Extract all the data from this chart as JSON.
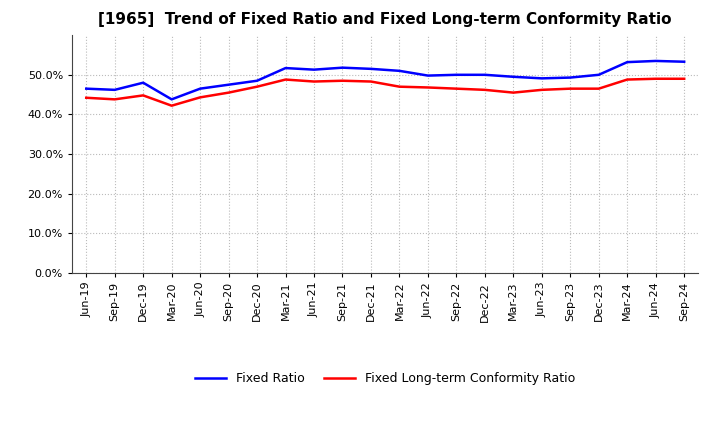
{
  "title": "[1965]  Trend of Fixed Ratio and Fixed Long-term Conformity Ratio",
  "x_labels": [
    "Jun-19",
    "Sep-19",
    "Dec-19",
    "Mar-20",
    "Jun-20",
    "Sep-20",
    "Dec-20",
    "Mar-21",
    "Jun-21",
    "Sep-21",
    "Dec-21",
    "Mar-22",
    "Jun-22",
    "Sep-22",
    "Dec-22",
    "Mar-23",
    "Jun-23",
    "Sep-23",
    "Dec-23",
    "Mar-24",
    "Jun-24",
    "Sep-24"
  ],
  "fixed_ratio": [
    46.5,
    46.2,
    48.0,
    43.8,
    46.5,
    47.5,
    48.5,
    51.7,
    51.3,
    51.8,
    51.5,
    51.0,
    49.8,
    50.0,
    50.0,
    49.5,
    49.1,
    49.3,
    50.0,
    53.2,
    53.5,
    53.3
  ],
  "fixed_lt_ratio": [
    44.2,
    43.8,
    44.8,
    42.2,
    44.3,
    45.5,
    47.0,
    48.8,
    48.3,
    48.5,
    48.3,
    47.0,
    46.8,
    46.5,
    46.2,
    45.5,
    46.2,
    46.5,
    46.5,
    48.8,
    49.0,
    49.0
  ],
  "fixed_ratio_color": "#0000FF",
  "fixed_lt_ratio_color": "#FF0000",
  "ylim": [
    0,
    60
  ],
  "yticks": [
    0.0,
    10.0,
    20.0,
    30.0,
    40.0,
    50.0
  ],
  "background_color": "#FFFFFF",
  "grid_color": "#BBBBBB",
  "title_fontsize": 11,
  "tick_fontsize": 8,
  "legend_fontsize": 9
}
